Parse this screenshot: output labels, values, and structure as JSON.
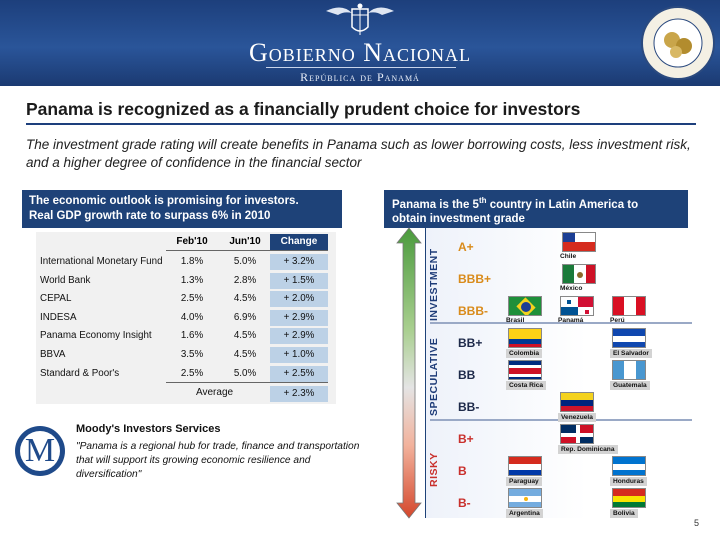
{
  "header": {
    "title": "Gobierno Nacional",
    "subtitle": "República de Panamá",
    "colors": {
      "banner": "#1d3f7c",
      "box": "#1e4278"
    }
  },
  "slide": {
    "headline": "Panama is recognized as a financially prudent choice for investors",
    "lead": "The investment grade rating will create benefits in Panama such as lower borrowing costs, less investment risk, and a higher degree of confidence in the financial sector",
    "page": "5"
  },
  "left_box": {
    "line1": "The economic outlook is promising for investors.",
    "line2": "Real GDP growth rate to surpass 6% in 2010"
  },
  "right_box": {
    "pre": "Panama is the 5",
    "sup": "th",
    "post": " country in Latin America to",
    "line2": "obtain investment grade"
  },
  "table": {
    "headers": [
      "Feb'10",
      "Jun'10",
      "Change"
    ],
    "rows": [
      {
        "name": "International Monetary Fund",
        "feb": "1.8%",
        "jun": "5.0%",
        "chg": "+ 3.2%"
      },
      {
        "name": "World Bank",
        "feb": "1.3%",
        "jun": "2.8%",
        "chg": "+ 1.5%"
      },
      {
        "name": "CEPAL",
        "feb": "2.5%",
        "jun": "4.5%",
        "chg": "+ 2.0%"
      },
      {
        "name": "INDESA",
        "feb": "4.0%",
        "jun": "6.9%",
        "chg": "+ 2.9%"
      },
      {
        "name": "Panama Economy Insight",
        "feb": "1.6%",
        "jun": "4.5%",
        "chg": "+ 2.9%"
      },
      {
        "name": "BBVA",
        "feb": "3.5%",
        "jun": "4.5%",
        "chg": "+ 1.0%"
      },
      {
        "name": "Standard & Poor's",
        "feb": "2.5%",
        "jun": "5.0%",
        "chg": "+ 2.5%"
      }
    ],
    "average_label": "Average",
    "average_change": "+ 2.3%"
  },
  "moodys": {
    "logo_letter": "M",
    "title": "Moody's Investors Services",
    "quote": "\"Panama is a regional hub for trade, finance and transportation that will support its growing economic resilience and diversification\""
  },
  "scale": {
    "bands": {
      "investment": "INVESTMENT",
      "speculative": "SPECULATIVE",
      "risky": "RISKY"
    },
    "grades": [
      {
        "grade": "A+",
        "band": "a",
        "countries": [
          {
            "name": "Chile",
            "flag": "chile-flag-icon"
          }
        ]
      },
      {
        "grade": "BBB+",
        "band": "a",
        "countries": [
          {
            "name": "México",
            "flag": "mexico-flag-icon"
          }
        ]
      },
      {
        "grade": "BBB-",
        "band": "a",
        "countries": [
          {
            "name": "Brasil",
            "flag": "brazil-flag-icon"
          },
          {
            "name": "Panamá",
            "flag": "panama-flag-icon"
          },
          {
            "name": "Perú",
            "flag": "peru-flag-icon"
          }
        ]
      },
      {
        "grade": "BB+",
        "band": "s",
        "countries": [
          {
            "name": "Colombia",
            "flag": "colombia-flag-icon"
          },
          {
            "name": "El Salvador",
            "flag": "el-salvador-flag-icon"
          }
        ]
      },
      {
        "grade": "BB",
        "band": "s",
        "countries": [
          {
            "name": "Costa Rica",
            "flag": "costa-rica-flag-icon"
          },
          {
            "name": "Guatemala",
            "flag": "guatemala-flag-icon"
          }
        ]
      },
      {
        "grade": "BB-",
        "band": "s",
        "countries": [
          {
            "name": "Venezuela",
            "flag": "venezuela-flag-icon"
          }
        ]
      },
      {
        "grade": "B+",
        "band": "r",
        "countries": [
          {
            "name": "Rep. Dominicana",
            "flag": "dominican-republic-flag-icon"
          }
        ]
      },
      {
        "grade": "B",
        "band": "r",
        "countries": [
          {
            "name": "Paraguay",
            "flag": "paraguay-flag-icon"
          },
          {
            "name": "Honduras",
            "flag": "honduras-flag-icon"
          }
        ]
      },
      {
        "grade": "B-",
        "band": "r",
        "countries": [
          {
            "name": "Argentina",
            "flag": "argentina-flag-icon"
          },
          {
            "name": "Bolivia",
            "flag": "bolivia-flag-icon"
          }
        ]
      }
    ]
  }
}
